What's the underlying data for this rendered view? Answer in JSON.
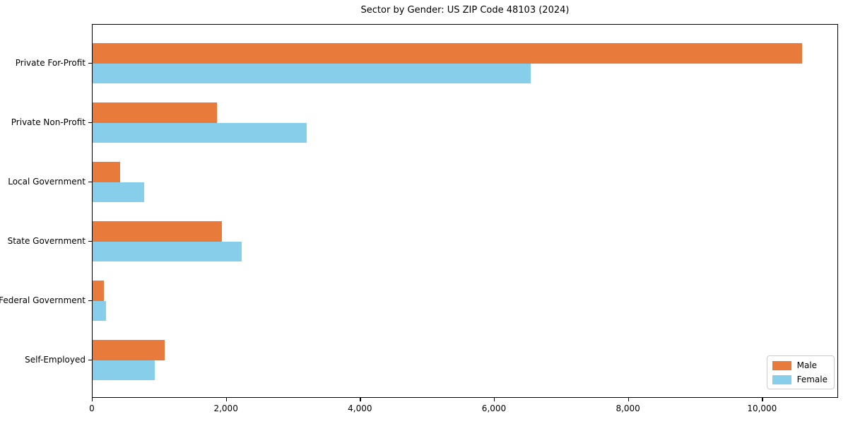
{
  "chart_data": {
    "type": "bar",
    "orientation": "horizontal",
    "title": "Sector by Gender: US ZIP Code 48103 (2024)",
    "categories": [
      "Private For-Profit",
      "Private Non-Profit",
      "Local Government",
      "State Government",
      "Federal Government",
      "Self-Employed"
    ],
    "series": [
      {
        "name": "Male",
        "color": "#E87A3C",
        "values": [
          10590,
          1860,
          415,
          1930,
          170,
          1080
        ]
      },
      {
        "name": "Female",
        "color": "#86CEEA",
        "values": [
          6540,
          3190,
          775,
          2230,
          200,
          930
        ]
      }
    ],
    "xlabel": "",
    "ylabel": "",
    "xlim": [
      0,
      11125
    ],
    "xticks": [
      0,
      2000,
      4000,
      6000,
      8000,
      10000
    ],
    "xtick_labels": [
      "0",
      "2,000",
      "4,000",
      "6,000",
      "8,000",
      "10,000"
    ],
    "grid": false,
    "legend_position": "lower right",
    "background_color": "#ffffff",
    "text_color": "#000000"
  }
}
